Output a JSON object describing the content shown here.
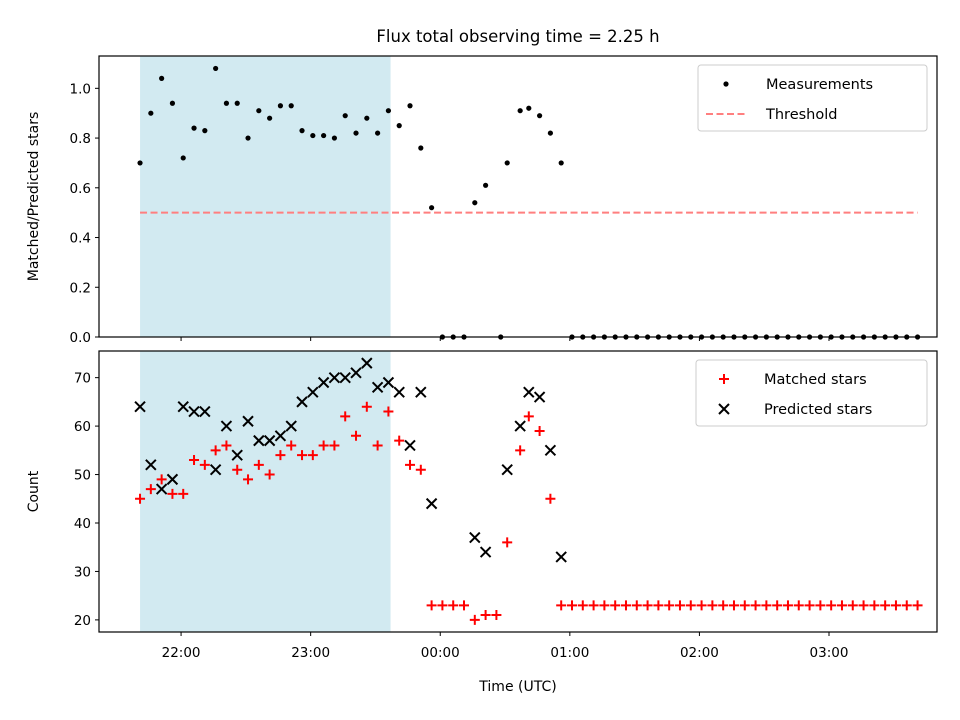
{
  "figure": {
    "title": "Flux total observing time = 2.25 h"
  },
  "chart_data": [
    {
      "type": "scatter",
      "ylabel": "Matched/Predicted stars",
      "xlabel": "",
      "xlim": [
        "21:22",
        "03:50"
      ],
      "ylim": [
        0,
        1.13
      ],
      "yticks": [
        0.0,
        0.2,
        0.4,
        0.6,
        0.8,
        1.0
      ],
      "ytick_labels": [
        "0.0",
        "0.2",
        "0.4",
        "0.6",
        "0.8",
        "1.0"
      ],
      "xticks": [
        "22:00",
        "23:00",
        "00:00",
        "01:00",
        "02:00",
        "03:00"
      ],
      "show_xtick_labels": false,
      "shaded_interval": {
        "from": "21:41",
        "to": "23:37",
        "color": "#add8e6"
      },
      "legend": {
        "position": "top-right",
        "entries": [
          {
            "label": "Measurements",
            "marker": "dot",
            "color": "#000000"
          },
          {
            "label": "Threshold",
            "marker": "dashed-line",
            "color": "#ff7f7f"
          }
        ]
      },
      "series": [
        {
          "name": "Measurements",
          "marker": "dot",
          "color": "#000000",
          "points": [
            [
              "21:41",
              0.7
            ],
            [
              "21:46",
              0.9
            ],
            [
              "21:51",
              1.04
            ],
            [
              "21:56",
              0.94
            ],
            [
              "22:01",
              0.72
            ],
            [
              "22:06",
              0.84
            ],
            [
              "22:11",
              0.83
            ],
            [
              "22:16",
              1.08
            ],
            [
              "22:21",
              0.94
            ],
            [
              "22:26",
              0.94
            ],
            [
              "22:31",
              0.8
            ],
            [
              "22:36",
              0.91
            ],
            [
              "22:41",
              0.88
            ],
            [
              "22:46",
              0.93
            ],
            [
              "22:51",
              0.93
            ],
            [
              "22:56",
              0.83
            ],
            [
              "23:01",
              0.81
            ],
            [
              "23:06",
              0.81
            ],
            [
              "23:11",
              0.8
            ],
            [
              "23:16",
              0.89
            ],
            [
              "23:21",
              0.82
            ],
            [
              "23:26",
              0.88
            ],
            [
              "23:31",
              0.82
            ],
            [
              "23:36",
              0.91
            ],
            [
              "23:41",
              0.85
            ],
            [
              "23:46",
              0.93
            ],
            [
              "23:51",
              0.76
            ],
            [
              "23:56",
              0.52
            ],
            [
              "00:01",
              0.0
            ],
            [
              "00:06",
              0.0
            ],
            [
              "00:11",
              0.0
            ],
            [
              "00:16",
              0.54
            ],
            [
              "00:21",
              0.61
            ],
            [
              "00:28",
              0.0
            ],
            [
              "00:31",
              0.7
            ],
            [
              "00:37",
              0.91
            ],
            [
              "00:41",
              0.92
            ],
            [
              "00:46",
              0.89
            ],
            [
              "00:51",
              0.82
            ],
            [
              "00:56",
              0.7
            ],
            [
              "01:01",
              0.0
            ],
            [
              "01:06",
              0.0
            ],
            [
              "01:11",
              0.0
            ],
            [
              "01:16",
              0.0
            ],
            [
              "01:21",
              0.0
            ],
            [
              "01:26",
              0.0
            ],
            [
              "01:31",
              0.0
            ],
            [
              "01:36",
              0.0
            ],
            [
              "01:41",
              0.0
            ],
            [
              "01:46",
              0.0
            ],
            [
              "01:51",
              0.0
            ],
            [
              "01:56",
              0.0
            ],
            [
              "02:01",
              0.0
            ],
            [
              "02:06",
              0.0
            ],
            [
              "02:11",
              0.0
            ],
            [
              "02:16",
              0.0
            ],
            [
              "02:21",
              0.0
            ],
            [
              "02:26",
              0.0
            ],
            [
              "02:31",
              0.0
            ],
            [
              "02:36",
              0.0
            ],
            [
              "02:41",
              0.0
            ],
            [
              "02:46",
              0.0
            ],
            [
              "02:51",
              0.0
            ],
            [
              "02:56",
              0.0
            ],
            [
              "03:01",
              0.0
            ],
            [
              "03:06",
              0.0
            ],
            [
              "03:11",
              0.0
            ],
            [
              "03:16",
              0.0
            ],
            [
              "03:21",
              0.0
            ],
            [
              "03:26",
              0.0
            ],
            [
              "03:31",
              0.0
            ],
            [
              "03:36",
              0.0
            ],
            [
              "03:41",
              0.0
            ]
          ]
        },
        {
          "name": "Threshold",
          "type": "line",
          "style": "dashed",
          "color": "#ff7f7f",
          "points": [
            [
              "21:41",
              0.5
            ],
            [
              "03:41",
              0.5
            ]
          ]
        }
      ]
    },
    {
      "type": "scatter",
      "ylabel": "Count",
      "xlabel": "Time (UTC)",
      "xlim": [
        "21:22",
        "03:50"
      ],
      "ylim": [
        17.5,
        75.5
      ],
      "yticks": [
        20,
        30,
        40,
        50,
        60,
        70
      ],
      "ytick_labels": [
        "20",
        "30",
        "40",
        "50",
        "60",
        "70"
      ],
      "xticks": [
        "22:00",
        "23:00",
        "00:00",
        "01:00",
        "02:00",
        "03:00"
      ],
      "xtick_labels": [
        "22:00",
        "23:00",
        "00:00",
        "01:00",
        "02:00",
        "03:00"
      ],
      "shaded_interval": {
        "from": "21:41",
        "to": "23:37",
        "color": "#add8e6"
      },
      "legend": {
        "position": "top-right",
        "entries": [
          {
            "label": "Matched stars",
            "marker": "plus",
            "color": "#ff0000"
          },
          {
            "label": "Predicted stars",
            "marker": "x",
            "color": "#000000"
          }
        ]
      },
      "series": [
        {
          "name": "Matched stars",
          "marker": "plus",
          "color": "#ff0000",
          "points": [
            [
              "21:41",
              45
            ],
            [
              "21:46",
              47
            ],
            [
              "21:51",
              49
            ],
            [
              "21:56",
              46
            ],
            [
              "22:01",
              46
            ],
            [
              "22:06",
              53
            ],
            [
              "22:11",
              52
            ],
            [
              "22:16",
              55
            ],
            [
              "22:21",
              56
            ],
            [
              "22:26",
              51
            ],
            [
              "22:31",
              49
            ],
            [
              "22:36",
              52
            ],
            [
              "22:41",
              50
            ],
            [
              "22:46",
              54
            ],
            [
              "22:51",
              56
            ],
            [
              "22:56",
              54
            ],
            [
              "23:01",
              54
            ],
            [
              "23:06",
              56
            ],
            [
              "23:11",
              56
            ],
            [
              "23:16",
              62
            ],
            [
              "23:21",
              58
            ],
            [
              "23:26",
              64
            ],
            [
              "23:31",
              56
            ],
            [
              "23:36",
              63
            ],
            [
              "23:41",
              57
            ],
            [
              "23:46",
              52
            ],
            [
              "23:51",
              51
            ],
            [
              "23:56",
              23
            ],
            [
              "00:01",
              23
            ],
            [
              "00:06",
              23
            ],
            [
              "00:11",
              23
            ],
            [
              "00:16",
              20
            ],
            [
              "00:21",
              21
            ],
            [
              "00:26",
              21
            ],
            [
              "00:31",
              36
            ],
            [
              "00:37",
              55
            ],
            [
              "00:41",
              62
            ],
            [
              "00:46",
              59
            ],
            [
              "00:51",
              45
            ],
            [
              "00:56",
              23
            ],
            [
              "01:01",
              23
            ],
            [
              "01:06",
              23
            ],
            [
              "01:11",
              23
            ],
            [
              "01:16",
              23
            ],
            [
              "01:21",
              23
            ],
            [
              "01:26",
              23
            ],
            [
              "01:31",
              23
            ],
            [
              "01:36",
              23
            ],
            [
              "01:41",
              23
            ],
            [
              "01:46",
              23
            ],
            [
              "01:51",
              23
            ],
            [
              "01:56",
              23
            ],
            [
              "02:01",
              23
            ],
            [
              "02:06",
              23
            ],
            [
              "02:11",
              23
            ],
            [
              "02:16",
              23
            ],
            [
              "02:21",
              23
            ],
            [
              "02:26",
              23
            ],
            [
              "02:31",
              23
            ],
            [
              "02:36",
              23
            ],
            [
              "02:41",
              23
            ],
            [
              "02:46",
              23
            ],
            [
              "02:51",
              23
            ],
            [
              "02:56",
              23
            ],
            [
              "03:01",
              23
            ],
            [
              "03:06",
              23
            ],
            [
              "03:11",
              23
            ],
            [
              "03:16",
              23
            ],
            [
              "03:21",
              23
            ],
            [
              "03:26",
              23
            ],
            [
              "03:31",
              23
            ],
            [
              "03:36",
              23
            ],
            [
              "03:41",
              23
            ]
          ]
        },
        {
          "name": "Predicted stars",
          "marker": "x",
          "color": "#000000",
          "points": [
            [
              "21:41",
              64
            ],
            [
              "21:46",
              52
            ],
            [
              "21:51",
              47
            ],
            [
              "21:56",
              49
            ],
            [
              "22:01",
              64
            ],
            [
              "22:06",
              63
            ],
            [
              "22:11",
              63
            ],
            [
              "22:16",
              51
            ],
            [
              "22:21",
              60
            ],
            [
              "22:26",
              54
            ],
            [
              "22:31",
              61
            ],
            [
              "22:36",
              57
            ],
            [
              "22:41",
              57
            ],
            [
              "22:46",
              58
            ],
            [
              "22:51",
              60
            ],
            [
              "22:56",
              65
            ],
            [
              "23:01",
              67
            ],
            [
              "23:06",
              69
            ],
            [
              "23:11",
              70
            ],
            [
              "23:16",
              70
            ],
            [
              "23:21",
              71
            ],
            [
              "23:26",
              73
            ],
            [
              "23:31",
              68
            ],
            [
              "23:36",
              69
            ],
            [
              "23:41",
              67
            ],
            [
              "23:46",
              56
            ],
            [
              "23:51",
              67
            ],
            [
              "23:56",
              44
            ],
            [
              "00:16",
              37
            ],
            [
              "00:21",
              34
            ],
            [
              "00:31",
              51
            ],
            [
              "00:37",
              60
            ],
            [
              "00:41",
              67
            ],
            [
              "00:46",
              66
            ],
            [
              "00:51",
              55
            ],
            [
              "00:56",
              33
            ]
          ]
        }
      ]
    }
  ]
}
